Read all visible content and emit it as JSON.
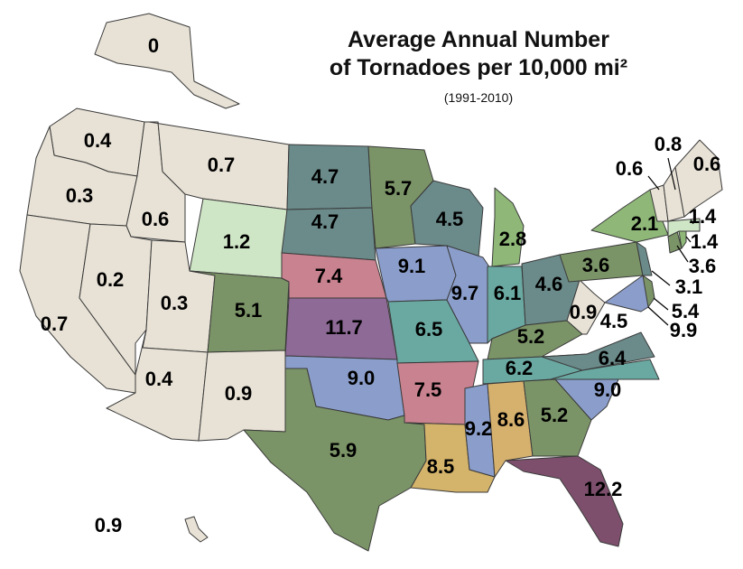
{
  "title_line1": "Average Annual Number",
  "title_line2": "of Tornadoes per 10,000 mi²",
  "period": "(1991-2010)",
  "colors": {
    "c0": "#e8e2d6",
    "c1": "#cfe6c6",
    "c2": "#8fb878",
    "c4": "#6b8a8a",
    "c5": "#7b9467",
    "c6": "#6aa9a2",
    "c7": "#c9828f",
    "c9": "#8b9ecb",
    "c11": "#8e6a97",
    "c12": "#7d4f6c",
    "la": "#d4b36a",
    "al": "#d6b06d"
  },
  "states": [
    {
      "id": "WA",
      "value": "0.4",
      "color": "c0"
    },
    {
      "id": "OR",
      "value": "0.3",
      "color": "c0"
    },
    {
      "id": "CA",
      "value": "0.7",
      "color": "c0"
    },
    {
      "id": "ID",
      "value": "0.6",
      "color": "c0"
    },
    {
      "id": "NV",
      "value": "0.2",
      "color": "c0"
    },
    {
      "id": "UT",
      "value": "0.3",
      "color": "c0"
    },
    {
      "id": "AZ",
      "value": "0.4",
      "color": "c0"
    },
    {
      "id": "MT",
      "value": "0.7",
      "color": "c0"
    },
    {
      "id": "WY",
      "value": "1.2",
      "color": "c1"
    },
    {
      "id": "CO",
      "value": "5.1",
      "color": "c5"
    },
    {
      "id": "NM",
      "value": "0.9",
      "color": "c0"
    },
    {
      "id": "ND",
      "value": "4.7",
      "color": "c4"
    },
    {
      "id": "SD",
      "value": "4.7",
      "color": "c4"
    },
    {
      "id": "NE",
      "value": "7.4",
      "color": "c7"
    },
    {
      "id": "KS",
      "value": "11.7",
      "color": "c11"
    },
    {
      "id": "OK",
      "value": "9.0",
      "color": "c9"
    },
    {
      "id": "TX",
      "value": "5.9",
      "color": "c5"
    },
    {
      "id": "MN",
      "value": "5.7",
      "color": "c5"
    },
    {
      "id": "IA",
      "value": "9.1",
      "color": "c9"
    },
    {
      "id": "MO",
      "value": "6.5",
      "color": "c6"
    },
    {
      "id": "AR",
      "value": "7.5",
      "color": "c7"
    },
    {
      "id": "LA",
      "value": "8.5",
      "color": "la"
    },
    {
      "id": "WI",
      "value": "4.5",
      "color": "c4"
    },
    {
      "id": "IL",
      "value": "9.7",
      "color": "c9"
    },
    {
      "id": "MI",
      "value": "2.8",
      "color": "c2"
    },
    {
      "id": "IN",
      "value": "6.1",
      "color": "c6"
    },
    {
      "id": "OH",
      "value": "4.6",
      "color": "c4"
    },
    {
      "id": "KY",
      "value": "5.2",
      "color": "c5"
    },
    {
      "id": "TN",
      "value": "6.2",
      "color": "c6"
    },
    {
      "id": "MS",
      "value": "9.2",
      "color": "c9"
    },
    {
      "id": "AL",
      "value": "8.6",
      "color": "al"
    },
    {
      "id": "GA",
      "value": "5.2",
      "color": "c5"
    },
    {
      "id": "FL",
      "value": "12.2",
      "color": "c12"
    },
    {
      "id": "SC",
      "value": "9.0",
      "color": "c9"
    },
    {
      "id": "NC",
      "value": "6.4",
      "color": "c6"
    },
    {
      "id": "VA",
      "value": "4.5",
      "color": "c4"
    },
    {
      "id": "WV",
      "value": "0.9",
      "color": "c0"
    },
    {
      "id": "PA",
      "value": "3.6",
      "color": "c5"
    },
    {
      "id": "NY",
      "value": "2.1",
      "color": "c2"
    },
    {
      "id": "MD",
      "value": "9.9",
      "color": "c9"
    },
    {
      "id": "DE",
      "value": "5.4",
      "color": "c5"
    },
    {
      "id": "NJ",
      "value": "3.1",
      "color": "c4"
    },
    {
      "id": "CT",
      "value": "3.6",
      "color": "c5"
    },
    {
      "id": "RI",
      "value": "1.4",
      "color": "c2"
    },
    {
      "id": "MA",
      "value": "1.4",
      "color": "c1"
    },
    {
      "id": "VT",
      "value": "0.6",
      "color": "c0"
    },
    {
      "id": "NH",
      "value": "0.8",
      "color": "c0"
    },
    {
      "id": "ME",
      "value": "0.6",
      "color": "c0"
    },
    {
      "id": "AK",
      "value": "0",
      "color": "c0"
    },
    {
      "id": "HI",
      "value": "0.9",
      "color": "c0"
    }
  ]
}
